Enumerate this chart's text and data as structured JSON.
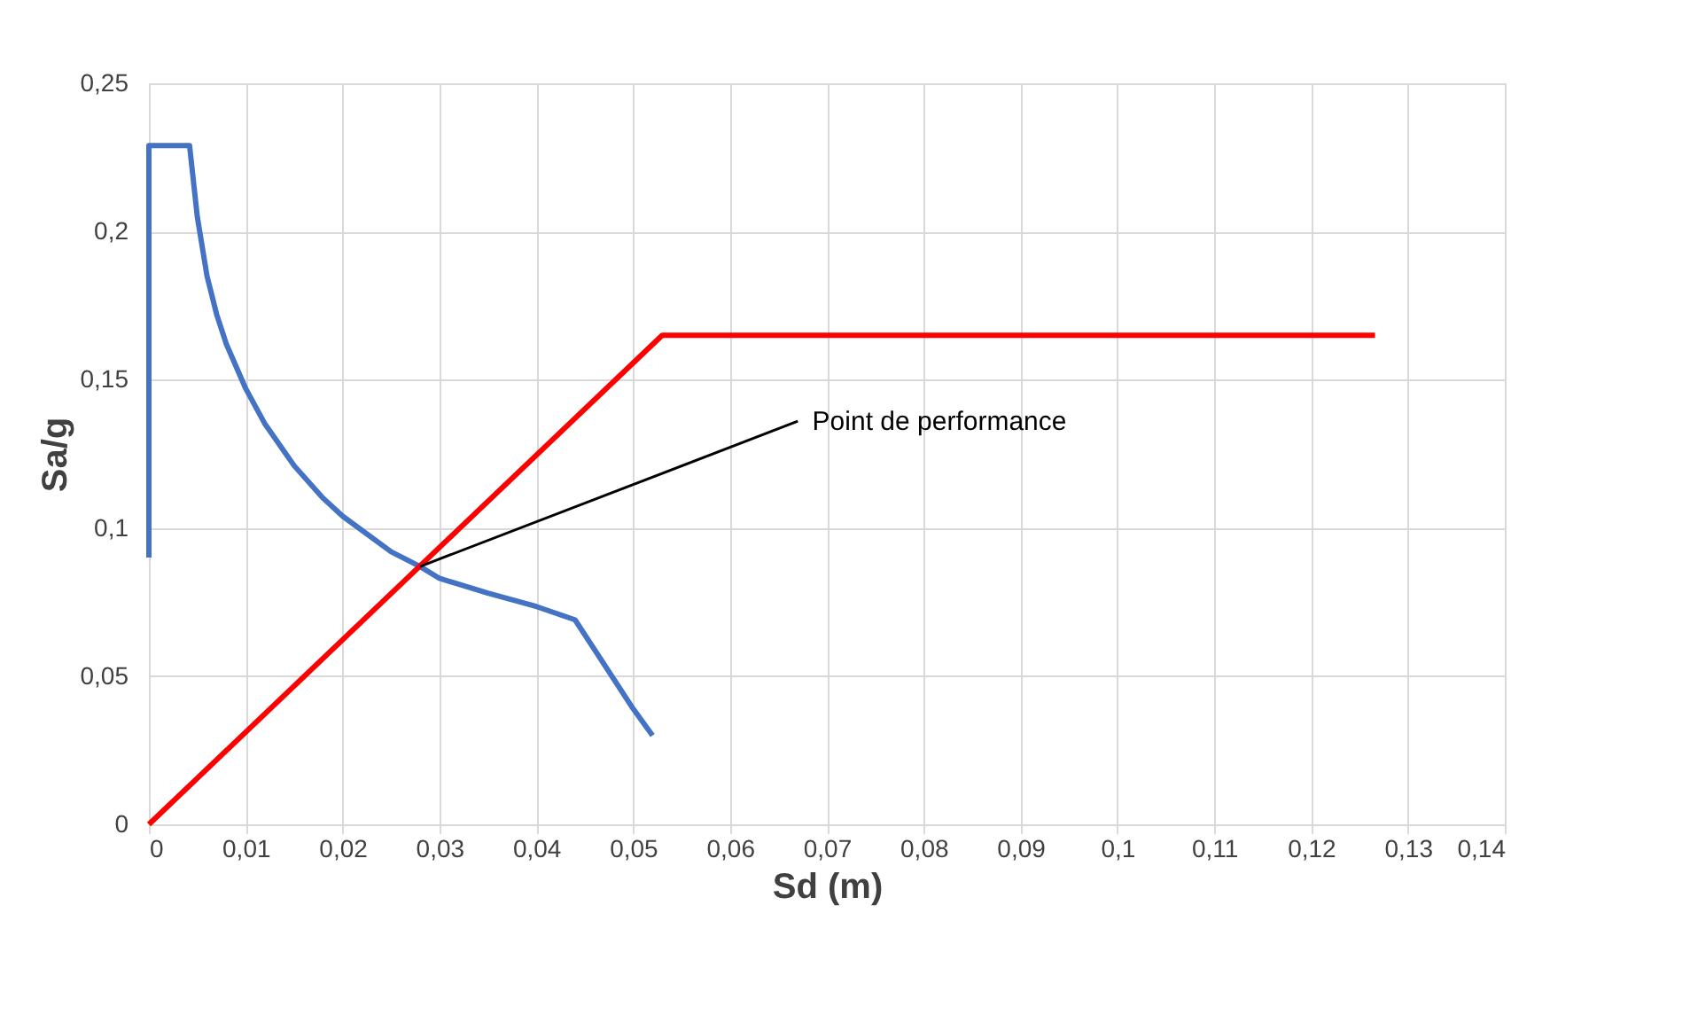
{
  "chart_data": {
    "type": "line",
    "xlabel": "Sd (m)",
    "ylabel": "Sa/g",
    "series": [
      {
        "color": "#4472c4",
        "x": [
          0,
          0,
          0.001,
          0.0042,
          0.005,
          0.006,
          0.007,
          0.008,
          0.01,
          0.012,
          0.015,
          0.018,
          0.02,
          0.025,
          0.028,
          0.03,
          0.035,
          0.04,
          0.044,
          0.046,
          0.048,
          0.05,
          0.052
        ],
        "values": [
          0.09,
          0.229,
          0.229,
          0.229,
          0.205,
          0.185,
          0.172,
          0.162,
          0.147,
          0.135,
          0.121,
          0.11,
          0.104,
          0.092,
          0.087,
          0.083,
          0.078,
          0.0735,
          0.069,
          0.059,
          0.049,
          0.039,
          0.03
        ]
      },
      {
        "color": "#ff0000",
        "x": [
          0,
          0.053,
          0.1266
        ],
        "values": [
          0,
          0.165,
          0.165
        ]
      }
    ],
    "annotations": [
      {
        "text": "Point de performance",
        "x": 0.028,
        "y": 0.087
      }
    ],
    "xlim": [
      0,
      0.14
    ],
    "ylim": [
      0,
      0.25
    ],
    "xticks": [
      0,
      {
        "value": 0.01,
        "label": "0,01"
      },
      {
        "value": 0.02,
        "label": "0,02"
      },
      {
        "value": 0.03,
        "label": "0,03"
      },
      {
        "value": 0.04,
        "label": "0,04"
      },
      {
        "value": 0.05,
        "label": "0,05"
      },
      {
        "value": 0.06,
        "label": "0,06"
      },
      {
        "value": 0.07,
        "label": "0,07"
      },
      {
        "value": 0.08,
        "label": "0,08"
      },
      {
        "value": 0.09,
        "label": "0,09"
      },
      {
        "value": 0.1,
        "label": "0,1"
      },
      {
        "value": 0.11,
        "label": "0,11"
      },
      {
        "value": 0.12,
        "label": "0,12"
      },
      {
        "value": 0.13,
        "label": "0,13"
      },
      {
        "value": 0.14,
        "label": "0,14"
      }
    ],
    "yticks": [
      0,
      {
        "value": 0.05,
        "label": "0,05"
      },
      {
        "value": 0.1,
        "label": "0,1"
      },
      {
        "value": 0.15,
        "label": "0,15"
      },
      {
        "value": 0.2,
        "label": "0,2"
      },
      {
        "value": 0.25,
        "label": "0,25"
      }
    ],
    "grid": true,
    "line_style": "solid",
    "marker": "none"
  }
}
